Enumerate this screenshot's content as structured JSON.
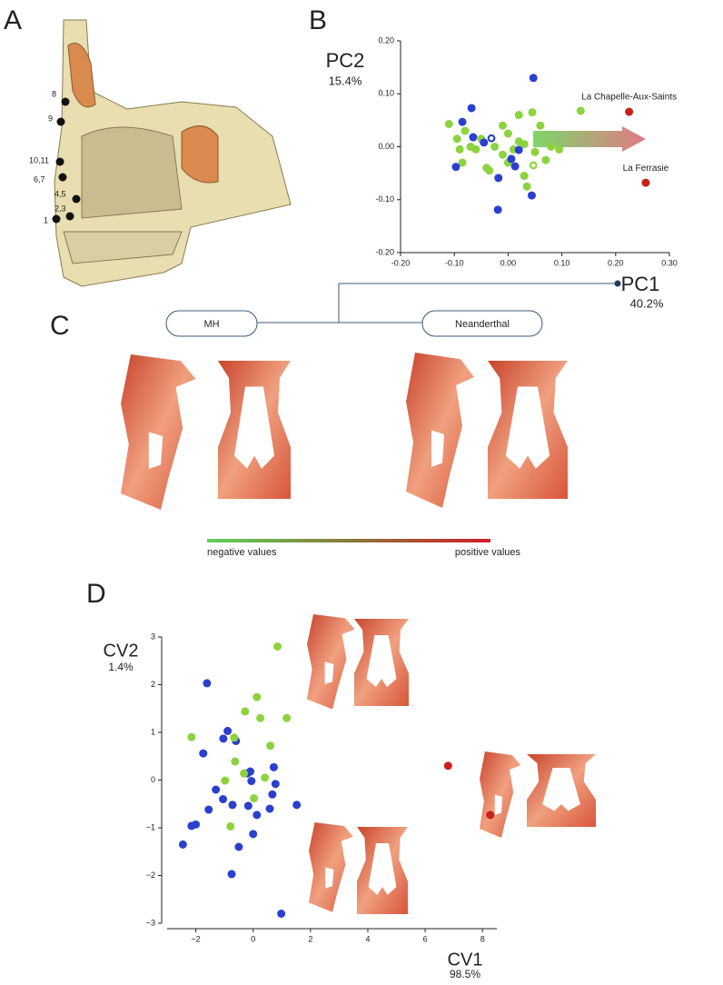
{
  "panels": {
    "a": "A",
    "b": "B",
    "c": "C",
    "d": "D"
  },
  "landmarks": [
    "8",
    "9",
    "10,11",
    "6,7",
    "4,5",
    "2,3",
    "1"
  ],
  "groups": [
    "MH",
    "Neanderthal"
  ],
  "gradient_labels": [
    "negative values",
    "positive values"
  ],
  "chart_data": [
    {
      "type": "scatter",
      "xlabel": "PC1",
      "xlabel_sub": "40.2%",
      "ylabel": "PC2",
      "ylabel_sub": "15.4%",
      "xlim": [
        -0.2,
        0.3
      ],
      "ylim": [
        -0.2,
        0.2
      ],
      "xticks": [
        {
          "value": -0.2,
          "label": "-0.20"
        },
        {
          "value": -0.1,
          "label": "-0.10"
        },
        {
          "value": 0,
          "label": "0.00"
        },
        {
          "value": 0.1,
          "label": "0.10"
        },
        {
          "value": 0.2,
          "label": "0.20"
        },
        {
          "value": 0.3,
          "label": "0.30"
        }
      ],
      "yticks": [
        {
          "value": -0.2,
          "label": "-0.20"
        },
        {
          "value": -0.1,
          "label": "-0.10"
        },
        {
          "value": 0,
          "label": "0.00"
        },
        {
          "value": 0.1,
          "label": "0.10"
        },
        {
          "value": 0.2,
          "label": "0.20"
        }
      ],
      "series": [
        {
          "color": "#8cd33f",
          "hollow": false,
          "x": [
            -0.11,
            -0.08,
            -0.095,
            -0.07,
            -0.06,
            -0.09,
            -0.085,
            -0.04,
            -0.035,
            -0.01,
            0.0,
            0.02,
            0.045,
            0.02,
            0.03,
            0.0,
            -0.01,
            0.06,
            0.08,
            0.07,
            0.03,
            0.035,
            0.05,
            0.135,
            0.095,
            -0.05,
            -0.025,
            0.01
          ],
          "values": [
            0.043,
            0.03,
            0.015,
            0.0,
            -0.005,
            -0.005,
            -0.03,
            -0.04,
            -0.045,
            0.04,
            0.025,
            0.06,
            0.065,
            0.01,
            0.005,
            -0.03,
            -0.015,
            0.04,
            0.0,
            -0.025,
            -0.055,
            -0.075,
            -0.01,
            0.068,
            -0.005,
            0.015,
            0.0,
            -0.005
          ]
        },
        {
          "color": "#2b3fcf",
          "hollow": false,
          "x": [
            0.047,
            -0.068,
            -0.085,
            -0.065,
            -0.097,
            -0.018,
            -0.019,
            0.044,
            0.02,
            0.006,
            0.013,
            -0.045
          ],
          "values": [
            0.13,
            0.073,
            0.047,
            0.018,
            -0.038,
            -0.059,
            -0.119,
            -0.092,
            -0.006,
            -0.023,
            -0.037,
            0.008
          ]
        },
        {
          "color": "#2b3fcf",
          "hollow": true,
          "x": [
            -0.031
          ],
          "values": [
            0.016
          ]
        },
        {
          "color": "#8cd33f",
          "hollow": true,
          "x": [
            0.047
          ],
          "values": [
            -0.035
          ]
        },
        {
          "color": "#c8201c",
          "hollow": false,
          "x": [
            0.225,
            0.256
          ],
          "values": [
            0.066,
            -0.068
          ],
          "point_labels": [
            "La Chapelle-Aux-Saints",
            "La Ferrasie"
          ]
        }
      ]
    },
    {
      "type": "scatter",
      "xlabel": "CV1",
      "xlabel_sub": "98.5%",
      "ylabel": "CV2",
      "ylabel_sub": "1.4%",
      "xlim": [
        -3,
        8.5
      ],
      "ylim": [
        -3,
        3
      ],
      "xticks": [
        {
          "value": -2,
          "label": "−2"
        },
        0,
        2,
        4,
        6,
        8
      ],
      "yticks": [
        {
          "value": -3,
          "label": "−3"
        },
        {
          "value": -2,
          "label": "−2"
        },
        {
          "value": -1,
          "label": "−1"
        },
        0,
        1,
        2,
        3
      ],
      "series": [
        {
          "color": "#2b3fcf",
          "hollow": false,
          "x": [
            -1.61,
            -1.74,
            -1.04,
            -0.89,
            -0.6,
            -0.2,
            -0.1,
            -0.06,
            -1.3,
            -1.05,
            -0.72,
            -1.55,
            -2.0,
            -2.15,
            -2.45,
            -0.5,
            -0.75,
            0.0,
            0.13,
            0.67,
            0.78,
            0.72,
            0.58,
            1.52,
            0.98,
            -0.17
          ],
          "values": [
            2.03,
            0.56,
            0.87,
            1.03,
            0.82,
            0.14,
            0.18,
            -0.02,
            -0.2,
            -0.4,
            -0.52,
            -0.62,
            -0.93,
            -0.96,
            -1.35,
            -1.4,
            -1.97,
            -1.13,
            -0.73,
            -0.3,
            -0.08,
            0.27,
            -0.6,
            -0.52,
            -2.8,
            -0.54
          ]
        },
        {
          "color": "#8cd33f",
          "hollow": false,
          "x": [
            0.85,
            0.13,
            -0.28,
            0.25,
            1.17,
            -2.15,
            -0.66,
            0.6,
            -0.63,
            -0.32,
            -0.98,
            0.41,
            0.03,
            -0.79
          ],
          "values": [
            2.8,
            1.74,
            1.44,
            1.3,
            1.3,
            0.9,
            0.89,
            0.72,
            0.39,
            0.14,
            -0.01,
            0.05,
            -0.38,
            -0.97
          ]
        },
        {
          "color": "#c8201c",
          "hollow": false,
          "x": [
            6.8,
            8.27
          ],
          "values": [
            0.3,
            -0.73
          ]
        }
      ]
    }
  ]
}
